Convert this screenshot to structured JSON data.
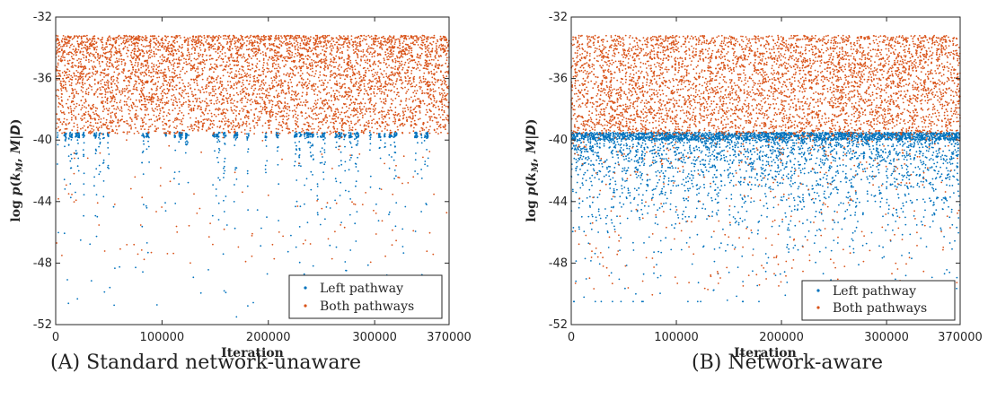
{
  "chart_data": [
    {
      "type": "scatter",
      "caption_tag": "(A)",
      "caption_text": "Standard network-unaware",
      "xlabel": "Iteration",
      "ylabel": "log p(k_M, M|D)",
      "xlim": [
        0,
        370000
      ],
      "ylim": [
        -52,
        -32
      ],
      "xticks": [
        "0",
        "100000",
        "200000",
        "300000",
        "370000"
      ],
      "xtick_values": [
        0,
        100000,
        200000,
        300000,
        370000
      ],
      "yticks": [
        "-32",
        "-36",
        "-40",
        "-44",
        "-48",
        "-52"
      ],
      "ytick_values": [
        -32,
        -36,
        -40,
        -44,
        -48,
        -52
      ],
      "legend_position": "bottom-right",
      "series": [
        {
          "name": "Left pathway",
          "color": "#0072BD",
          "y_range": [
            -51.5,
            -39.5
          ],
          "concentration": -39.5,
          "pattern": "intermittent vertical bands"
        },
        {
          "name": "Both pathways",
          "color": "#D95319",
          "y_range": [
            -48.5,
            -33.2
          ],
          "concentration": -33.2,
          "pattern": "dense band above -39.5"
        }
      ]
    },
    {
      "type": "scatter",
      "caption_tag": "(B)",
      "caption_text": "Network-aware",
      "xlabel": "Iteration",
      "ylabel": "log p(k_M, M|D)",
      "xlim": [
        0,
        370000
      ],
      "ylim": [
        -52,
        -32
      ],
      "xticks": [
        "0",
        "100000",
        "200000",
        "300000",
        "370000"
      ],
      "xtick_values": [
        0,
        100000,
        200000,
        300000,
        370000
      ],
      "yticks": [
        "-32",
        "-36",
        "-40",
        "-44",
        "-48",
        "-52"
      ],
      "ytick_values": [
        -32,
        -36,
        -40,
        -44,
        -48,
        -52
      ],
      "legend_position": "bottom-right",
      "series": [
        {
          "name": "Left pathway",
          "color": "#0072BD",
          "y_range": [
            -50.5,
            -39.5
          ],
          "concentration": -39.5,
          "pattern": "continuous dense band"
        },
        {
          "name": "Both pathways",
          "color": "#D95319",
          "y_range": [
            -50.5,
            -33.2
          ],
          "concentration": -33.2,
          "pattern": "dense band above -39.5"
        }
      ]
    }
  ]
}
